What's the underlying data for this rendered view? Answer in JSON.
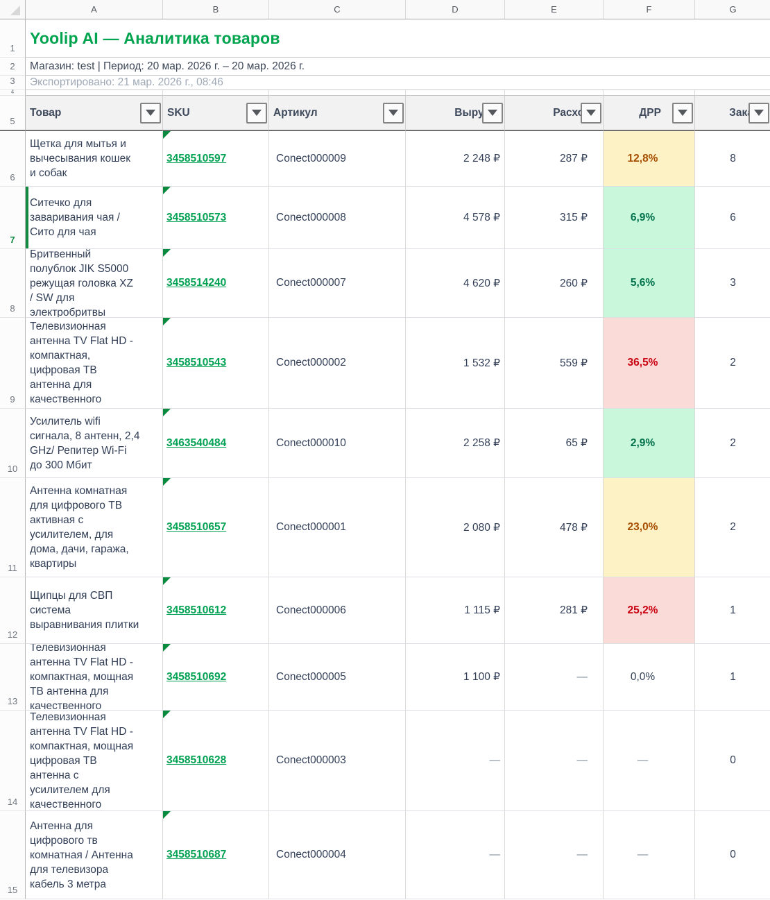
{
  "colors": {
    "accent_green": "#00A44F",
    "link_green": "#00A152",
    "warn_bg": "#FDF1C6",
    "warn_text": "#A64E00",
    "good_bg": "#C9F7DC",
    "good_text": "#00714A",
    "bad_bg": "#FBDBD8",
    "bad_text": "#C9000F"
  },
  "column_letters": [
    "A",
    "B",
    "C",
    "D",
    "E",
    "F",
    "G"
  ],
  "gutter": [
    "1",
    "2",
    "3",
    "4",
    "5"
  ],
  "report": {
    "title": "Yoolip AI — Аналитика товаров",
    "subtitle": "Магазин: test | Период: 20 мар. 2026 г. – 20 мар. 2026 г.",
    "exported": "Экспортировано: 21 мар. 2026 г., 08:46"
  },
  "table": {
    "headers": {
      "product": "Товар",
      "sku": "SKU",
      "article": "Артикул",
      "revenue": "Выручка",
      "expenses": "Расходы",
      "drr": "ДРР",
      "orders": "Заказы"
    },
    "rows": [
      {
        "num": "6",
        "product": "Щетка для мытья и\nвычесывания кошек\nи собак",
        "sku": "3458510597",
        "article": "Conect000009",
        "revenue": "2 248 ₽",
        "expenses": "287 ₽",
        "drr": "12,8%",
        "drr_level": "drr-warn",
        "orders": "8"
      },
      {
        "num": "7",
        "product": "Ситечко для\nзаваривания чая /\nСито для чая",
        "sku": "3458510573",
        "article": "Conect000008",
        "revenue": "4 578 ₽",
        "expenses": "315 ₽",
        "drr": "6,9%",
        "drr_level": "drr-good",
        "orders": "6"
      },
      {
        "num": "8",
        "product": "Бритвенный\nполублок JIK S5000\nрежущая головка XZ\n/ SW для\nэлектробритвы",
        "sku": "3458514240",
        "article": "Conect000007",
        "revenue": "4 620 ₽",
        "expenses": "260 ₽",
        "drr": "5,6%",
        "drr_level": "drr-good",
        "orders": "3"
      },
      {
        "num": "9",
        "product": "Телевизионная\nантенна TV Flat HD -\nкомпактная,\nцифровая ТВ\nантенна для\nкачественного",
        "sku": "3458510543",
        "article": "Conect000002",
        "revenue": "1 532 ₽",
        "expenses": "559 ₽",
        "drr": "36,5%",
        "drr_level": "drr-bad",
        "orders": "2"
      },
      {
        "num": "10",
        "product": "Усилитель wifi\nсигнала, 8 антенн, 2,4\nGHz/ Репитер Wi-Fi\nдо 300 Мбит",
        "sku": "3463540484",
        "article": "Conect000010",
        "revenue": "2 258 ₽",
        "expenses": "65 ₽",
        "drr": "2,9%",
        "drr_level": "drr-good",
        "orders": "2"
      },
      {
        "num": "11",
        "product": "Антенна комнатная\nдля цифрового ТВ\nактивная с\nусилителем, для\nдома, дачи, гаража,\nквартиры",
        "sku": "3458510657",
        "article": "Conect000001",
        "revenue": "2 080 ₽",
        "expenses": "478 ₽",
        "drr": "23,0%",
        "drr_level": "drr-warn",
        "orders": "2"
      },
      {
        "num": "12",
        "product": "Щипцы для СВП\nсистема\nвыравнивания плитки",
        "sku": "3458510612",
        "article": "Conect000006",
        "revenue": "1 115 ₽",
        "expenses": "281 ₽",
        "drr": "25,2%",
        "drr_level": "drr-bad",
        "orders": "1"
      },
      {
        "num": "13",
        "product": "Телевизионная\nантенна TV Flat HD -\nкомпактная, мощная\nТВ антенна для\nкачественного",
        "sku": "3458510692",
        "article": "Conect000005",
        "revenue": "1 100 ₽",
        "expenses": "—",
        "drr": "0,0%",
        "drr_level": "drr-neutral",
        "orders": "1"
      },
      {
        "num": "14",
        "product": "Телевизионная\nантенна TV Flat HD -\nкомпактная, мощная\nцифровая ТВ\nантенна с\nусилителем для\nкачественного",
        "sku": "3458510628",
        "article": "Conect000003",
        "revenue": "—",
        "expenses": "—",
        "drr": "—",
        "drr_level": "drr-neutral",
        "orders": "0"
      },
      {
        "num": "15",
        "product": "Антенна для\nцифрового тв\nкомнатная / Антенна\nдля телевизора\nкабель 3 метра",
        "sku": "3458510687",
        "article": "Conect000004",
        "revenue": "—",
        "expenses": "—",
        "drr": "—",
        "drr_level": "drr-neutral",
        "orders": "0"
      }
    ]
  }
}
